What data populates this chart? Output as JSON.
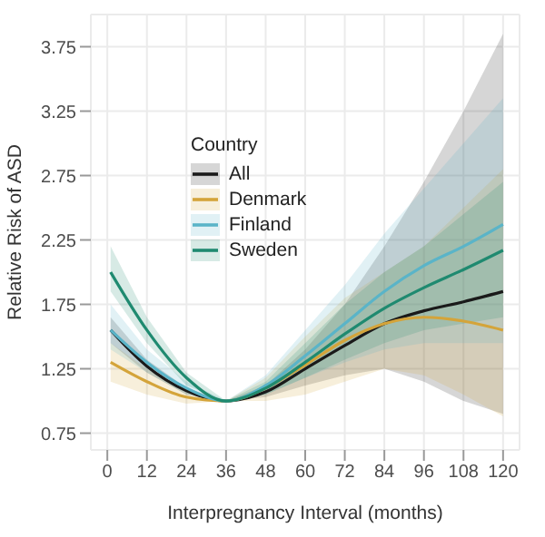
{
  "chart_data": {
    "type": "line",
    "xlabel": "Interpregnancy Interval (months)",
    "ylabel": "Relative Risk of ASD",
    "legend_title": "Country",
    "legend": "top left",
    "grid": true,
    "xlim": [
      -5,
      125
    ],
    "ylim": [
      0.62,
      4.0
    ],
    "xticks": [
      0,
      12,
      24,
      36,
      48,
      60,
      72,
      84,
      96,
      108,
      120
    ],
    "yticks": [
      0.75,
      1.25,
      1.75,
      2.25,
      2.75,
      3.25,
      3.75
    ],
    "x": [
      1,
      12,
      24,
      36,
      48,
      60,
      72,
      84,
      96,
      108,
      120
    ],
    "series": [
      {
        "name": "All",
        "color": "#1a1a1a",
        "values": [
          1.55,
          1.27,
          1.08,
          1.0,
          1.07,
          1.25,
          1.43,
          1.6,
          1.7,
          1.77,
          1.85
        ],
        "lower": [
          1.45,
          1.22,
          1.05,
          1.0,
          1.03,
          1.12,
          1.2,
          1.25,
          1.15,
          1.0,
          0.9
        ],
        "upper": [
          1.65,
          1.32,
          1.1,
          1.0,
          1.12,
          1.4,
          1.75,
          2.2,
          2.7,
          3.25,
          3.85
        ]
      },
      {
        "name": "Denmark",
        "color": "#d4a43a",
        "values": [
          1.3,
          1.15,
          1.03,
          1.0,
          1.1,
          1.28,
          1.47,
          1.6,
          1.65,
          1.62,
          1.55
        ],
        "lower": [
          1.15,
          1.05,
          0.98,
          1.0,
          1.0,
          1.05,
          1.15,
          1.25,
          1.2,
          1.05,
          0.88
        ],
        "upper": [
          1.45,
          1.25,
          1.08,
          1.0,
          1.18,
          1.5,
          1.8,
          2.0,
          2.2,
          2.5,
          2.8
        ]
      },
      {
        "name": "Finland",
        "color": "#5ab4c8",
        "values": [
          1.55,
          1.3,
          1.1,
          1.0,
          1.12,
          1.35,
          1.6,
          1.85,
          2.05,
          2.2,
          2.37
        ],
        "lower": [
          1.4,
          1.22,
          1.05,
          1.0,
          1.05,
          1.18,
          1.3,
          1.4,
          1.45,
          1.45,
          1.45
        ],
        "upper": [
          1.75,
          1.4,
          1.15,
          1.0,
          1.2,
          1.55,
          1.9,
          2.3,
          2.65,
          3.0,
          3.35
        ]
      },
      {
        "name": "Sweden",
        "color": "#1f8a70",
        "values": [
          2.0,
          1.55,
          1.18,
          1.0,
          1.1,
          1.3,
          1.52,
          1.72,
          1.88,
          2.02,
          2.17
        ],
        "lower": [
          1.85,
          1.45,
          1.12,
          1.0,
          1.05,
          1.18,
          1.32,
          1.45,
          1.55,
          1.6,
          1.65
        ],
        "upper": [
          2.2,
          1.65,
          1.22,
          1.0,
          1.15,
          1.45,
          1.75,
          2.0,
          2.2,
          2.45,
          2.7
        ]
      }
    ]
  }
}
